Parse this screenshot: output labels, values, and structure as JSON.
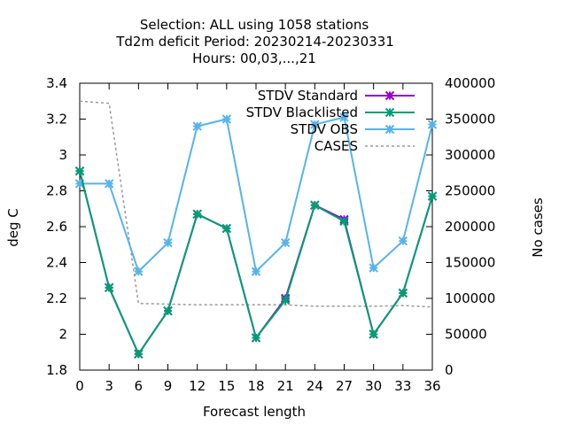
{
  "chart_data": {
    "type": "line",
    "title_lines": [
      "Selection: ALL using  1058 stations",
      "Td2m deficit   Period: 20230214-20230331",
      "Hours:  00,03,...,21"
    ],
    "xlabel": "Forecast length",
    "ylabel": "deg C",
    "y2label": "No cases",
    "x": [
      0,
      3,
      6,
      9,
      12,
      15,
      18,
      21,
      24,
      27,
      30,
      33,
      36
    ],
    "xlim": [
      0,
      36
    ],
    "ylim": [
      1.8,
      3.4
    ],
    "y2lim": [
      0,
      400000
    ],
    "xticks": [
      "0",
      "3",
      "6",
      "9",
      "12",
      "15",
      "18",
      "21",
      "24",
      "27",
      "30",
      "33",
      "36"
    ],
    "yticks": [
      "1.8",
      "2",
      "2.2",
      "2.4",
      "2.6",
      "2.8",
      "3",
      "3.2",
      "3.4"
    ],
    "y2ticks": [
      "0",
      "50000",
      "100000",
      "150000",
      "200000",
      "250000",
      "300000",
      "350000",
      "400000"
    ],
    "legend_position": "top-right",
    "series": [
      {
        "name": "STDV Standard",
        "axis": "y1",
        "color": "#9400d3",
        "marker": "x-star",
        "dashed": false,
        "values": [
          2.91,
          2.26,
          1.89,
          2.13,
          2.67,
          2.59,
          1.98,
          2.2,
          2.72,
          2.64,
          2.0,
          2.23,
          2.77
        ]
      },
      {
        "name": "STDV Blacklisted",
        "axis": "y1",
        "color": "#009e73",
        "marker": "x-star",
        "dashed": false,
        "values": [
          2.91,
          2.26,
          1.89,
          2.13,
          2.67,
          2.59,
          1.98,
          2.19,
          2.72,
          2.63,
          2.0,
          2.23,
          2.77
        ]
      },
      {
        "name": "STDV OBS",
        "axis": "y1",
        "color": "#56b4e9",
        "marker": "x-star",
        "dashed": false,
        "values": [
          2.84,
          2.84,
          2.35,
          2.51,
          3.16,
          3.2,
          2.35,
          2.51,
          3.17,
          3.21,
          2.37,
          2.52,
          3.17
        ]
      },
      {
        "name": "CASES",
        "axis": "y2",
        "color": "#999999",
        "marker": "none",
        "dashed": true,
        "values": [
          375000,
          372000,
          93000,
          92000,
          91000,
          91000,
          91000,
          91000,
          89000,
          89000,
          89000,
          90000,
          88000
        ]
      }
    ]
  }
}
